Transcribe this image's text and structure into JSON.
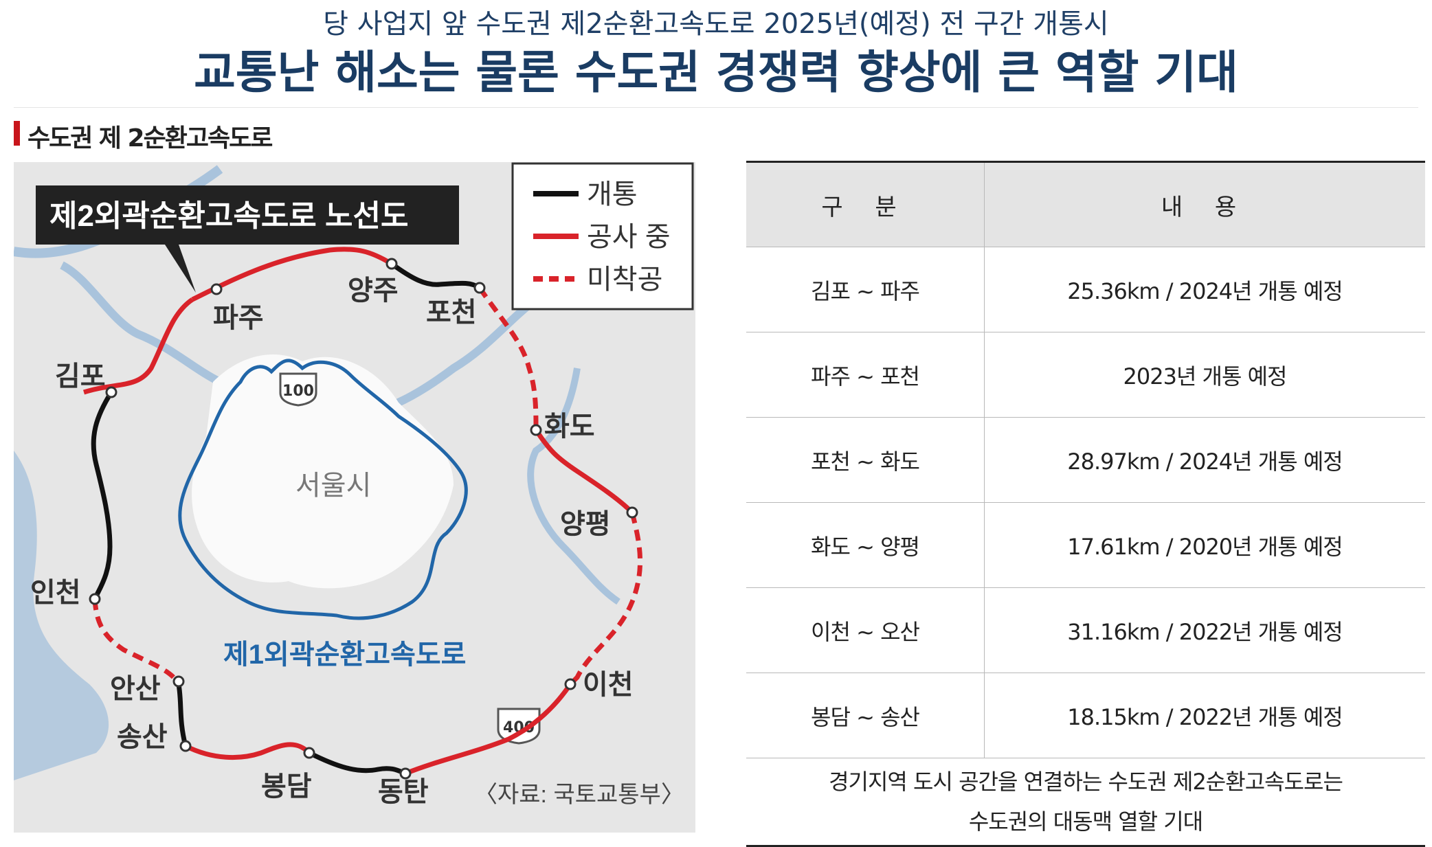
{
  "header": {
    "subtitle": "당 사업지 앞 수도권 제2순환고속도로 2025년(예정) 전 구간 개통시",
    "headline": "교통난 해소는 물론 수도권 경쟁력 향상에 큰 역할 기대"
  },
  "section": {
    "title": "수도권 제 2순환고속도로"
  },
  "map": {
    "title": "제2외곽순환고속도로 노선도",
    "legend": [
      {
        "label": "개통",
        "color": "#111111",
        "style": "solid"
      },
      {
        "label": "공사 중",
        "color": "#d9232a",
        "style": "solid"
      },
      {
        "label": "미착공",
        "color": "#d9232a",
        "style": "dashed"
      }
    ],
    "cities": {
      "paju": "파주",
      "yangju": "양주",
      "pocheon": "포천",
      "gimpo": "김포",
      "hwado": "화도",
      "yangpyeong": "양평",
      "incheon": "인천",
      "ansan": "안산",
      "songsan": "송산",
      "bongdam": "봉담",
      "dongtan": "동탄",
      "icheon": "이천"
    },
    "seoul_label": "서울시",
    "inner_ring_label": "제1외곽순환고속도로",
    "route_100": "100",
    "route_400": "400",
    "source": "〈자료: 국토교통부〉"
  },
  "table": {
    "headers": [
      "구 분",
      "내 용"
    ],
    "rows": [
      {
        "section": "김포 ~ 파주",
        "content": "25.36km / 2024년 개통 예정"
      },
      {
        "section": "파주 ~ 포천",
        "content": "2023년 개통 예정"
      },
      {
        "section": "포천 ~ 화도",
        "content": "28.97km / 2024년 개통 예정"
      },
      {
        "section": "화도 ~ 양평",
        "content": "17.61km / 2020년 개통 예정"
      },
      {
        "section": "이천 ~ 오산",
        "content": "31.16km / 2022년 개통 예정"
      },
      {
        "section": "봉담 ~ 송산",
        "content": "18.15km / 2022년 개통 예정"
      }
    ],
    "note_line1": "경기지역 도시 공간을 연결하는 수도권 제2순환고속도로는",
    "note_line2": "수도권의 대동맥 열할 기대"
  }
}
